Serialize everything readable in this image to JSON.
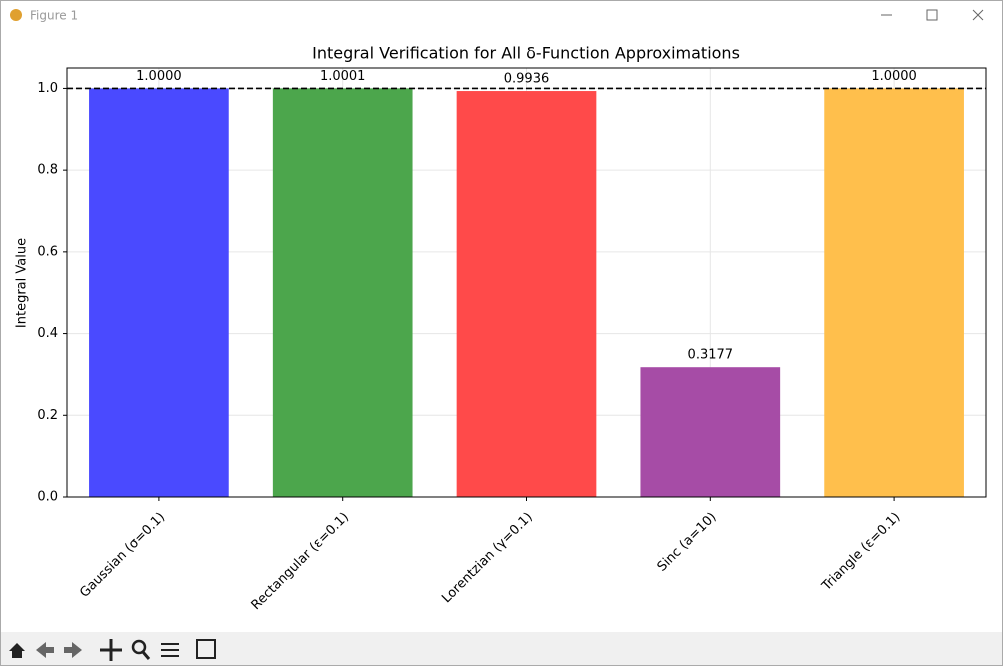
{
  "window": {
    "title": "Figure 1"
  },
  "chart_data": {
    "type": "bar",
    "title": "Integral Verification for All δ-Function Approximations",
    "y_label": "Integral Value",
    "categories": [
      "Gaussian (σ=0.1)",
      "Rectangular (ε=0.1)",
      "Lorentzian (γ=0.1)",
      "Sinc (a=10)",
      "Triangle (ε=0.1)"
    ],
    "values": [
      1.0,
      1.0001,
      0.9936,
      0.3177,
      1.0
    ],
    "value_labels": [
      "1.0000",
      "1.0001",
      "0.9936",
      "0.3177",
      "1.0000"
    ],
    "colors": [
      "#4a4aff",
      "#4ca64c",
      "#ff4a4a",
      "#a64ca6",
      "#ffbf4c"
    ],
    "ylim": [
      0,
      1.05
    ],
    "yticks": [
      {
        "value": 0,
        "label": "0.0"
      },
      0.2,
      0.4,
      0.6,
      0.8,
      {
        "value": 1,
        "label": "1.0"
      }
    ],
    "reference_line": 1,
    "grid": true
  }
}
